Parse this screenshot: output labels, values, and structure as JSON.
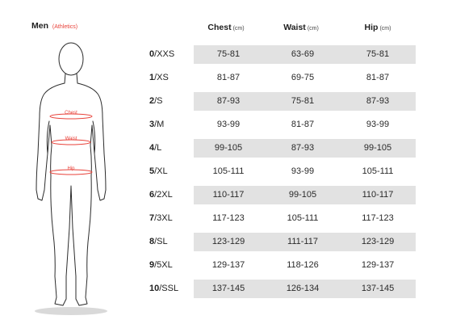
{
  "header": {
    "title": "Men",
    "subtitle": "(Athletics)"
  },
  "figure_labels": {
    "chest": "Chest",
    "waist": "Waist",
    "hip": "Hip"
  },
  "columns": [
    {
      "label": "Chest",
      "unit": "(cm)"
    },
    {
      "label": "Waist",
      "unit": "(cm)"
    },
    {
      "label": "Hip",
      "unit": "(cm)"
    }
  ],
  "rows": [
    {
      "num": "0",
      "code": "/XXS",
      "chest": "75-81",
      "waist": "63-69",
      "hip": "75-81"
    },
    {
      "num": "1",
      "code": "/XS",
      "chest": "81-87",
      "waist": "69-75",
      "hip": "81-87"
    },
    {
      "num": "2",
      "code": "/S",
      "chest": "87-93",
      "waist": "75-81",
      "hip": "87-93"
    },
    {
      "num": "3",
      "code": "/M",
      "chest": "93-99",
      "waist": "81-87",
      "hip": "93-99"
    },
    {
      "num": "4",
      "code": "/L",
      "chest": "99-105",
      "waist": "87-93",
      "hip": "99-105"
    },
    {
      "num": "5",
      "code": "/XL",
      "chest": "105-111",
      "waist": "93-99",
      "hip": "105-111"
    },
    {
      "num": "6",
      "code": "/2XL",
      "chest": "110-117",
      "waist": "99-105",
      "hip": "110-117"
    },
    {
      "num": "7",
      "code": "/3XL",
      "chest": "117-123",
      "waist": "105-111",
      "hip": "117-123"
    },
    {
      "num": "8",
      "code": "/SL",
      "chest": "123-129",
      "waist": "111-117",
      "hip": "123-129"
    },
    {
      "num": "9",
      "code": "/5XL",
      "chest": "129-137",
      "waist": "118-126",
      "hip": "129-137"
    },
    {
      "num": "10",
      "code": "/SSL",
      "chest": "137-145",
      "waist": "126-134",
      "hip": "137-145"
    }
  ],
  "colors": {
    "accent": "#e8423a",
    "shade": "#e2e2e2",
    "outline": "#2b2b2b"
  }
}
